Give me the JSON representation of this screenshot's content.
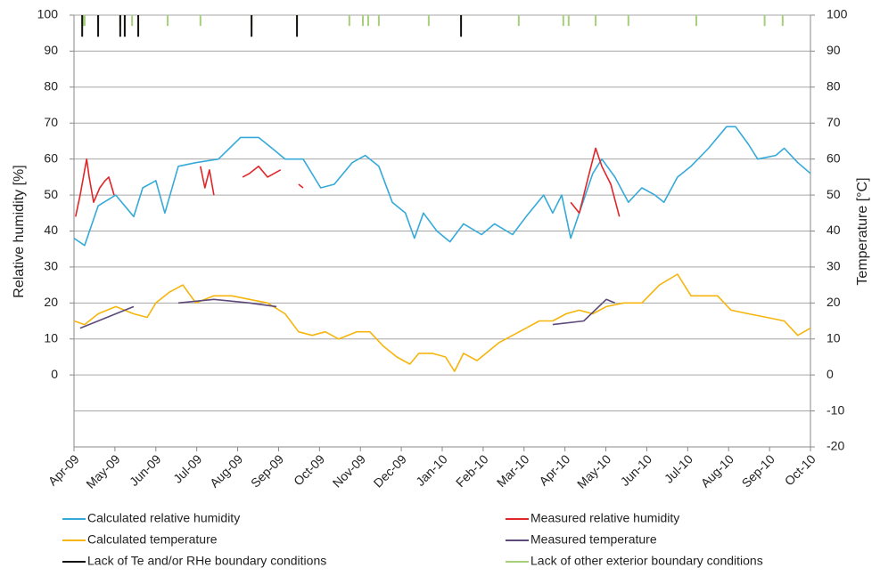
{
  "chart_data": {
    "type": "line",
    "y_label": "Relative humidity [%]",
    "y2_label": "Temperature [°C]",
    "xlim": [
      0,
      18
    ],
    "xticks": [
      {
        "value": 0,
        "label": "Apr-09"
      },
      {
        "value": 1,
        "label": "May-09"
      },
      {
        "value": 2,
        "label": "Jun-09"
      },
      {
        "value": 3,
        "label": "Jul-09"
      },
      {
        "value": 4,
        "label": "Aug-09"
      },
      {
        "value": 5,
        "label": "Sep-09"
      },
      {
        "value": 6,
        "label": "Oct-09"
      },
      {
        "value": 7,
        "label": "Nov-09"
      },
      {
        "value": 8,
        "label": "Dec-09"
      },
      {
        "value": 9,
        "label": "Jan-10"
      },
      {
        "value": 10,
        "label": "Feb-10"
      },
      {
        "value": 11,
        "label": "Mar-10"
      },
      {
        "value": 12,
        "label": "Apr-10"
      },
      {
        "value": 13,
        "label": "May-10"
      },
      {
        "value": 14,
        "label": "Jun-10"
      },
      {
        "value": 15,
        "label": "Jul-10"
      },
      {
        "value": 16,
        "label": "Aug-10"
      },
      {
        "value": 17,
        "label": "Sep-10"
      },
      {
        "value": 18,
        "label": "Oct-10"
      }
    ],
    "ylim": [
      -20,
      100
    ],
    "yticks": [
      0,
      10,
      20,
      30,
      40,
      50,
      60,
      70,
      80,
      90,
      100
    ],
    "y2lim": [
      -20,
      100
    ],
    "y2ticks": [
      -20,
      -10,
      0,
      10,
      20,
      30,
      40,
      50,
      60,
      70,
      80,
      90,
      100
    ],
    "grid": true,
    "series": [
      {
        "name": "Calculated relative humidity",
        "color": "#35aad8",
        "style": "line",
        "x": [
          0,
          0.26,
          0.59,
          1.02,
          1.46,
          1.68,
          2.0,
          2.22,
          2.55,
          2.98,
          3.53,
          4.07,
          4.51,
          4.84,
          5.16,
          5.6,
          6.03,
          6.36,
          6.8,
          7.12,
          7.45,
          7.78,
          8.1,
          8.32,
          8.54,
          8.87,
          9.19,
          9.52,
          9.96,
          10.28,
          10.72,
          11.05,
          11.48,
          11.7,
          11.92,
          12.14,
          12.35,
          12.68,
          12.9,
          13.22,
          13.55,
          13.88,
          14.2,
          14.42,
          14.75,
          15.08,
          15.51,
          15.95,
          16.17,
          16.49,
          16.71,
          17.15,
          17.36,
          17.69,
          18
        ],
        "values": [
          38,
          36,
          47,
          50,
          44,
          52,
          54,
          45,
          58,
          59,
          60,
          66,
          66,
          63,
          60,
          60,
          52,
          53,
          59,
          61,
          58,
          48,
          45,
          38,
          45,
          40,
          37,
          42,
          39,
          42,
          39,
          44,
          50,
          45,
          50,
          38,
          45,
          56,
          60,
          55,
          48,
          52,
          50,
          48,
          55,
          58,
          63,
          69,
          69,
          64,
          60,
          61,
          63,
          59,
          56
        ]
      },
      {
        "name": "Measured relative humidity",
        "color": "#e0262b",
        "style": "line",
        "x": [
          0.04,
          0.15,
          0.31,
          0.37,
          0.48,
          0.63,
          0.76,
          0.85,
          0.98,
          null,
          3.09,
          3.2,
          3.31,
          3.42,
          null,
          4.12,
          4.29,
          4.51,
          4.73,
          5.05,
          null,
          5.49,
          5.6,
          null,
          12.14,
          12.35,
          12.57,
          12.75,
          12.9,
          13.12,
          13.33
        ],
        "values": [
          44,
          50,
          60,
          55,
          48,
          52,
          54,
          55,
          50,
          null,
          58,
          52,
          57,
          50,
          null,
          55,
          56,
          58,
          55,
          57,
          null,
          53,
          52,
          null,
          48,
          45,
          55,
          63,
          58,
          53,
          44
        ]
      },
      {
        "name": "Calculated temperature",
        "color": "#f5b50c",
        "style": "line",
        "axis": "y2",
        "x": [
          0,
          0.26,
          0.59,
          1.02,
          1.46,
          1.79,
          2.0,
          2.33,
          2.66,
          2.98,
          3.42,
          3.86,
          4.29,
          4.73,
          5.16,
          5.49,
          5.82,
          6.14,
          6.47,
          6.91,
          7.23,
          7.56,
          7.89,
          8.21,
          8.43,
          8.76,
          9.08,
          9.3,
          9.52,
          9.85,
          10.07,
          10.39,
          10.72,
          11.05,
          11.37,
          11.7,
          12.03,
          12.35,
          12.68,
          13.01,
          13.44,
          13.88,
          14.31,
          14.75,
          15.08,
          15.4,
          15.73,
          16.06,
          16.49,
          16.93,
          17.36,
          17.69,
          18
        ],
        "values": [
          15,
          14,
          17,
          19,
          17,
          16,
          20,
          23,
          25,
          20,
          22,
          22,
          21,
          20,
          17,
          12,
          11,
          12,
          10,
          12,
          12,
          8,
          5,
          3,
          6,
          6,
          5,
          1,
          6,
          4,
          6,
          9,
          11,
          13,
          15,
          15,
          17,
          18,
          17,
          19,
          20,
          20,
          25,
          28,
          22,
          22,
          22,
          18,
          17,
          16,
          15,
          11,
          13
        ]
      },
      {
        "name": "Measured temperature",
        "color": "#5c4a7a",
        "style": "line",
        "axis": "y2",
        "x": [
          0.15,
          0.59,
          1.02,
          1.46,
          null,
          2.55,
          3.42,
          4.29,
          4.95,
          null,
          11.7,
          12.46,
          13.01,
          13.22
        ],
        "values": [
          13,
          15,
          17,
          19,
          null,
          20,
          21,
          20,
          19,
          null,
          14,
          15,
          21,
          20
        ]
      },
      {
        "name": "Lack of Te and/or RHe boundary conditions",
        "color": "#111111",
        "style": "events",
        "x": [
          0.2,
          0.59,
          1.13,
          1.24,
          1.57,
          4.34,
          5.45,
          9.46
        ],
        "values": [
          94,
          94,
          94,
          94,
          94,
          94,
          94,
          94
        ]
      },
      {
        "name": "Lack of other exterior boundary conditions",
        "color": "#a6cf7a",
        "style": "events",
        "x": [
          0.22,
          0.26,
          0.59,
          1.13,
          1.42,
          2.29,
          3.09,
          4.34,
          5.45,
          6.73,
          7.06,
          7.19,
          7.45,
          8.67,
          9.46,
          10.87,
          11.96,
          12.09,
          12.75,
          13.55,
          15.21,
          16.88,
          17.32
        ],
        "values": [
          97,
          97,
          97,
          97,
          97,
          97,
          97,
          97,
          97,
          97,
          97,
          97,
          97,
          97,
          97,
          97,
          97,
          97,
          97,
          97,
          97,
          97,
          97
        ]
      }
    ]
  }
}
